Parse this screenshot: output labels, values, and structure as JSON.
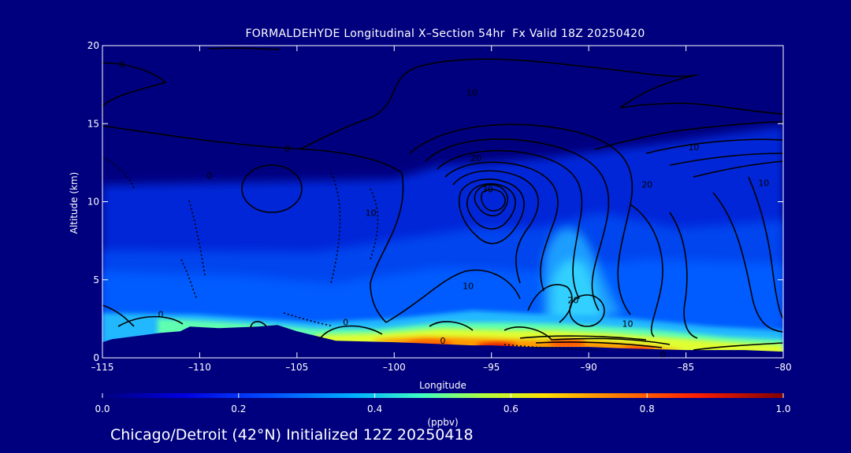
{
  "page": {
    "title": "FORMALDEHYDE Longitudinal X–Section 54hr  Fx Valid 18Z 20250420",
    "subtitle": "Chicago/Detroit (42°N) Initialized 12Z 20250418",
    "background_color": "#00007f"
  },
  "chart_data": {
    "type": "heatmap",
    "title": "FORMALDEHYDE Longitudinal X–Section 54hr  Fx Valid 18Z 20250420",
    "xlabel": "Longitude",
    "ylabel": "Altitude (km)",
    "xlim": [
      -115,
      -80
    ],
    "ylim": [
      0,
      20
    ],
    "x_ticks": [
      -115,
      -110,
      -105,
      -100,
      -95,
      -90,
      -85,
      -80
    ],
    "x_tick_labels": [
      "–115",
      "–110",
      "–105",
      "–100",
      "–95",
      "–90",
      "–85",
      "–80"
    ],
    "y_ticks": [
      0,
      5,
      10,
      15,
      20
    ],
    "y_tick_labels": [
      "0",
      "5",
      "10",
      "15",
      "20"
    ],
    "grid": false,
    "colorbar": {
      "label": "(ppbv)",
      "min": 0.0,
      "max": 1.0,
      "ticks": [
        0.0,
        0.2,
        0.4,
        0.6,
        0.8,
        1.0
      ],
      "tick_labels": [
        "0.0",
        "0.2",
        "0.4",
        "0.6",
        "0.8",
        "1.0"
      ]
    },
    "contour_labels": [
      {
        "text": "0",
        "x": -114,
        "y": 18.8
      },
      {
        "text": "0",
        "x": -105.5,
        "y": 13.4
      },
      {
        "text": "0",
        "x": -109.5,
        "y": 11.7
      },
      {
        "text": "10",
        "x": -101.2,
        "y": 9.3
      },
      {
        "text": "0",
        "x": -112,
        "y": 2.8
      },
      {
        "text": "0",
        "x": -102.5,
        "y": 2.3
      },
      {
        "text": "0",
        "x": -97.5,
        "y": 1.1
      },
      {
        "text": "10",
        "x": -96,
        "y": 17
      },
      {
        "text": "20",
        "x": -95.8,
        "y": 12.8
      },
      {
        "text": "30",
        "x": -95.2,
        "y": 10.8
      },
      {
        "text": "20",
        "x": -87,
        "y": 11.1
      },
      {
        "text": "10",
        "x": -84.6,
        "y": 13.5
      },
      {
        "text": "10",
        "x": -81,
        "y": 11.2
      },
      {
        "text": "10",
        "x": -96.2,
        "y": 4.6
      },
      {
        "text": "20",
        "x": -90.8,
        "y": 3.7
      },
      {
        "text": "10",
        "x": -88,
        "y": 2.2
      },
      {
        "text": "0",
        "x": -86.2,
        "y": 0.2
      }
    ],
    "terrain_lon": [
      -115,
      -114.5,
      -112,
      -111,
      -110.5,
      -109,
      -107,
      -106,
      -105,
      -103,
      -100,
      -98,
      -96,
      -95,
      -93,
      -90,
      -88,
      -85,
      -82,
      -80
    ],
    "terrain_km": [
      1.0,
      1.2,
      1.6,
      1.7,
      2.0,
      1.9,
      2.0,
      2.1,
      1.7,
      1.1,
      1.0,
      0.9,
      0.8,
      0.8,
      0.7,
      0.7,
      0.6,
      0.5,
      0.5,
      0.4
    ]
  }
}
